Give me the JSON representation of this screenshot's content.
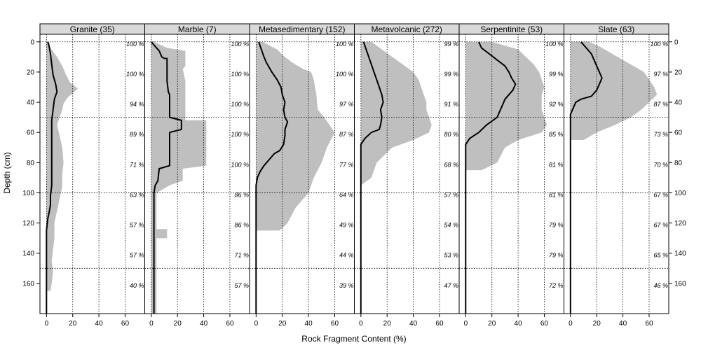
{
  "chart_data": {
    "type": "line",
    "xlabel": "Rock Fragment Content (%)",
    "ylabel": "Depth (cm)",
    "xlim": [
      -5,
      75
    ],
    "ylim": [
      180,
      -5
    ],
    "x_ticks": [
      0,
      20,
      40,
      60
    ],
    "y_ticks": [
      0,
      20,
      40,
      60,
      80,
      100,
      120,
      140,
      160
    ],
    "y_tick_labels": [
      "0",
      "20",
      "40",
      "60",
      "80",
      "100",
      "120",
      "140",
      "160"
    ],
    "x_tick_labels": [
      "0",
      "20",
      "40",
      "60"
    ],
    "grid": true,
    "grid_style": "dotted",
    "band_color": "#bfbfbf",
    "line_color": "#000000",
    "strip_color": "#d9d9d9",
    "panels": [
      {
        "label": "Granite (35)",
        "median": [
          [
            1,
            0
          ],
          [
            2,
            3
          ],
          [
            3,
            8
          ],
          [
            4,
            15
          ],
          [
            5,
            22
          ],
          [
            7,
            28
          ],
          [
            8,
            33
          ],
          [
            6,
            38
          ],
          [
            5,
            45
          ],
          [
            4,
            52
          ],
          [
            4,
            58
          ],
          [
            4,
            65
          ],
          [
            4,
            72
          ],
          [
            4,
            80
          ],
          [
            4,
            88
          ],
          [
            4,
            95
          ],
          [
            3,
            102
          ],
          [
            3,
            108
          ],
          [
            2,
            113
          ],
          [
            1,
            117
          ],
          [
            0,
            125
          ],
          [
            0,
            180
          ]
        ],
        "band_right": [
          [
            2,
            0
          ],
          [
            3,
            4
          ],
          [
            8,
            10
          ],
          [
            12,
            16
          ],
          [
            15,
            22
          ],
          [
            18,
            27
          ],
          [
            24,
            31
          ],
          [
            20,
            34
          ],
          [
            16,
            37
          ],
          [
            13,
            41
          ],
          [
            12,
            45
          ],
          [
            10,
            50
          ],
          [
            8,
            55
          ],
          [
            10,
            62
          ],
          [
            12,
            70
          ],
          [
            13,
            80
          ],
          [
            12,
            88
          ],
          [
            12,
            96
          ],
          [
            10,
            104
          ],
          [
            8,
            112
          ],
          [
            6,
            120
          ],
          [
            6,
            130
          ],
          [
            4,
            145
          ],
          [
            5,
            152
          ],
          [
            4,
            160
          ],
          [
            3,
            165
          ],
          [
            0,
            165
          ]
        ],
        "pct": [
          {
            "depth": 0,
            "text": "100 %"
          },
          {
            "depth": 20,
            "text": "100 %"
          },
          {
            "depth": 40,
            "text": "94 %"
          },
          {
            "depth": 60,
            "text": "89 %"
          },
          {
            "depth": 80,
            "text": "71 %"
          },
          {
            "depth": 100,
            "text": "63 %"
          },
          {
            "depth": 120,
            "text": "57 %"
          },
          {
            "depth": 140,
            "text": "57 %"
          },
          {
            "depth": 160,
            "text": "40 %"
          }
        ]
      },
      {
        "label": "Marble (7)",
        "median": [
          [
            0,
            0
          ],
          [
            3,
            3
          ],
          [
            6,
            6
          ],
          [
            8,
            10
          ],
          [
            10,
            11
          ],
          [
            12,
            11
          ],
          [
            12,
            18
          ],
          [
            12,
            22
          ],
          [
            12,
            26
          ],
          [
            13,
            33
          ],
          [
            14,
            35
          ],
          [
            14,
            45
          ],
          [
            14,
            50
          ],
          [
            23,
            52
          ],
          [
            23,
            58
          ],
          [
            14,
            60
          ],
          [
            14,
            70
          ],
          [
            14,
            82
          ],
          [
            6,
            84
          ],
          [
            5,
            92
          ],
          [
            3,
            95
          ],
          [
            2,
            100
          ],
          [
            2,
            180
          ]
        ],
        "band_right": [
          [
            2,
            0
          ],
          [
            12,
            4
          ],
          [
            26,
            6
          ],
          [
            26,
            16
          ],
          [
            24,
            18
          ],
          [
            26,
            26
          ],
          [
            26,
            52
          ],
          [
            42,
            52
          ],
          [
            42,
            82
          ],
          [
            24,
            84
          ],
          [
            24,
            92
          ],
          [
            14,
            95
          ],
          [
            4,
            100
          ],
          [
            4,
            124
          ],
          [
            12,
            124
          ],
          [
            12,
            130
          ],
          [
            4,
            130
          ],
          [
            4,
            180
          ]
        ],
        "band_left": [
          [
            0,
            0
          ],
          [
            0,
            180
          ]
        ],
        "pct": [
          {
            "depth": 0,
            "text": "100 %"
          },
          {
            "depth": 20,
            "text": "100 %"
          },
          {
            "depth": 40,
            "text": "100 %"
          },
          {
            "depth": 60,
            "text": "100 %"
          },
          {
            "depth": 80,
            "text": "100 %"
          },
          {
            "depth": 100,
            "text": "86 %"
          },
          {
            "depth": 120,
            "text": "86 %"
          },
          {
            "depth": 140,
            "text": "71 %"
          },
          {
            "depth": 160,
            "text": "57 %"
          }
        ]
      },
      {
        "label": "Metasedimentary (152)",
        "median": [
          [
            2,
            0
          ],
          [
            4,
            5
          ],
          [
            6,
            10
          ],
          [
            8,
            14
          ],
          [
            12,
            20
          ],
          [
            16,
            25
          ],
          [
            19,
            30
          ],
          [
            20,
            35
          ],
          [
            22,
            40
          ],
          [
            21,
            45
          ],
          [
            22,
            50
          ],
          [
            24,
            53
          ],
          [
            22,
            58
          ],
          [
            22,
            62
          ],
          [
            21,
            68
          ],
          [
            18,
            72
          ],
          [
            14,
            74
          ],
          [
            10,
            78
          ],
          [
            6,
            82
          ],
          [
            3,
            86
          ],
          [
            1,
            90
          ],
          [
            0,
            95
          ],
          [
            0,
            180
          ]
        ],
        "band_right": [
          [
            5,
            0
          ],
          [
            16,
            5
          ],
          [
            22,
            10
          ],
          [
            28,
            14
          ],
          [
            36,
            18
          ],
          [
            42,
            20
          ],
          [
            44,
            25
          ],
          [
            46,
            35
          ],
          [
            47,
            45
          ],
          [
            52,
            50
          ],
          [
            56,
            55
          ],
          [
            60,
            60
          ],
          [
            54,
            70
          ],
          [
            50,
            80
          ],
          [
            44,
            90
          ],
          [
            40,
            100
          ],
          [
            30,
            110
          ],
          [
            24,
            120
          ],
          [
            18,
            125
          ],
          [
            0,
            125
          ]
        ],
        "band_left": [
          [
            0,
            0
          ],
          [
            0,
            180
          ]
        ],
        "pct": [
          {
            "depth": 0,
            "text": "100 %"
          },
          {
            "depth": 20,
            "text": "100 %"
          },
          {
            "depth": 40,
            "text": "97 %"
          },
          {
            "depth": 60,
            "text": "87 %"
          },
          {
            "depth": 80,
            "text": "77 %"
          },
          {
            "depth": 100,
            "text": "64 %"
          },
          {
            "depth": 120,
            "text": "49 %"
          },
          {
            "depth": 140,
            "text": "44 %"
          },
          {
            "depth": 160,
            "text": "39 %"
          }
        ]
      },
      {
        "label": "Metavolcanic (272)",
        "median": [
          [
            2,
            0
          ],
          [
            4,
            5
          ],
          [
            6,
            10
          ],
          [
            8,
            15
          ],
          [
            10,
            20
          ],
          [
            12,
            25
          ],
          [
            14,
            30
          ],
          [
            16,
            35
          ],
          [
            17,
            40
          ],
          [
            15,
            45
          ],
          [
            16,
            50
          ],
          [
            15,
            55
          ],
          [
            14,
            58
          ],
          [
            8,
            60
          ],
          [
            3,
            64
          ],
          [
            0,
            68
          ],
          [
            0,
            180
          ]
        ],
        "band_right": [
          [
            8,
            0
          ],
          [
            16,
            5
          ],
          [
            24,
            10
          ],
          [
            32,
            15
          ],
          [
            40,
            20
          ],
          [
            44,
            25
          ],
          [
            46,
            30
          ],
          [
            48,
            35
          ],
          [
            50,
            40
          ],
          [
            50,
            45
          ],
          [
            52,
            50
          ],
          [
            54,
            55
          ],
          [
            52,
            60
          ],
          [
            40,
            65
          ],
          [
            24,
            70
          ],
          [
            12,
            80
          ],
          [
            8,
            90
          ],
          [
            0,
            95
          ]
        ],
        "band_left": [
          [
            0,
            0
          ],
          [
            0,
            180
          ]
        ],
        "pct": [
          {
            "depth": 0,
            "text": "99 %"
          },
          {
            "depth": 20,
            "text": "99 %"
          },
          {
            "depth": 40,
            "text": "91 %"
          },
          {
            "depth": 60,
            "text": "80 %"
          },
          {
            "depth": 80,
            "text": "68 %"
          },
          {
            "depth": 100,
            "text": "57 %"
          },
          {
            "depth": 120,
            "text": "54 %"
          },
          {
            "depth": 140,
            "text": "53 %"
          },
          {
            "depth": 160,
            "text": "47 %"
          }
        ]
      },
      {
        "label": "Serpentinite (53)",
        "median": [
          [
            10,
            0
          ],
          [
            12,
            4
          ],
          [
            18,
            8
          ],
          [
            24,
            12
          ],
          [
            30,
            16
          ],
          [
            33,
            20
          ],
          [
            35,
            24
          ],
          [
            38,
            28
          ],
          [
            36,
            32
          ],
          [
            30,
            38
          ],
          [
            28,
            42
          ],
          [
            26,
            46
          ],
          [
            24,
            50
          ],
          [
            16,
            55
          ],
          [
            10,
            60
          ],
          [
            3,
            64
          ],
          [
            0,
            68
          ],
          [
            0,
            180
          ]
        ],
        "band_right": [
          [
            20,
            0
          ],
          [
            32,
            3
          ],
          [
            40,
            5
          ],
          [
            46,
            10
          ],
          [
            52,
            15
          ],
          [
            56,
            20
          ],
          [
            58,
            25
          ],
          [
            60,
            30
          ],
          [
            58,
            35
          ],
          [
            58,
            45
          ],
          [
            60,
            50
          ],
          [
            62,
            55
          ],
          [
            58,
            60
          ],
          [
            40,
            65
          ],
          [
            30,
            70
          ],
          [
            24,
            80
          ],
          [
            12,
            85
          ],
          [
            0,
            85
          ]
        ],
        "band_left": [
          [
            0,
            0
          ],
          [
            0,
            180
          ]
        ],
        "pct": [
          {
            "depth": 0,
            "text": "100 %"
          },
          {
            "depth": 20,
            "text": "99 %"
          },
          {
            "depth": 40,
            "text": "92 %"
          },
          {
            "depth": 60,
            "text": "85 %"
          },
          {
            "depth": 80,
            "text": "81 %"
          },
          {
            "depth": 100,
            "text": "81 %"
          },
          {
            "depth": 120,
            "text": "79 %"
          },
          {
            "depth": 140,
            "text": "79 %"
          },
          {
            "depth": 160,
            "text": "72 %"
          }
        ]
      },
      {
        "label": "Slate (63)",
        "median": [
          [
            8,
            0
          ],
          [
            12,
            4
          ],
          [
            16,
            8
          ],
          [
            18,
            12
          ],
          [
            20,
            16
          ],
          [
            22,
            20
          ],
          [
            24,
            24
          ],
          [
            22,
            28
          ],
          [
            20,
            32
          ],
          [
            16,
            36
          ],
          [
            8,
            38
          ],
          [
            4,
            40
          ],
          [
            2,
            44
          ],
          [
            0,
            48
          ],
          [
            0,
            180
          ]
        ],
        "band_right": [
          [
            14,
            0
          ],
          [
            22,
            3
          ],
          [
            30,
            7
          ],
          [
            40,
            12
          ],
          [
            50,
            17
          ],
          [
            56,
            20
          ],
          [
            60,
            25
          ],
          [
            64,
            30
          ],
          [
            66,
            35
          ],
          [
            60,
            40
          ],
          [
            54,
            45
          ],
          [
            46,
            50
          ],
          [
            34,
            55
          ],
          [
            20,
            60
          ],
          [
            10,
            65
          ],
          [
            0,
            65
          ]
        ],
        "band_left": [
          [
            0,
            0
          ],
          [
            0,
            180
          ]
        ],
        "pct": [
          {
            "depth": 0,
            "text": "100 %"
          },
          {
            "depth": 20,
            "text": "97 %"
          },
          {
            "depth": 40,
            "text": "87 %"
          },
          {
            "depth": 60,
            "text": "73 %"
          },
          {
            "depth": 80,
            "text": "70 %"
          },
          {
            "depth": 100,
            "text": "67 %"
          },
          {
            "depth": 120,
            "text": "67 %"
          },
          {
            "depth": 140,
            "text": "65 %"
          },
          {
            "depth": 160,
            "text": "46 %"
          }
        ]
      }
    ]
  }
}
